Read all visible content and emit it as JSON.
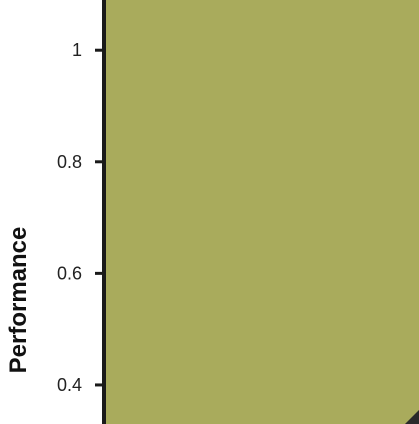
{
  "chart_data": {
    "type": "area",
    "ylabel": "Performance",
    "xlabel": "",
    "title": "",
    "ylim": [
      0.33,
      1.09
    ],
    "y_ticks": [
      1,
      0.8,
      0.6,
      0.4
    ],
    "y_tick_labels": [
      "1",
      "0.8",
      "0.6",
      "0.4"
    ],
    "grid": false,
    "legend": "none",
    "fill_color": "#a9ab5c",
    "series": [
      {
        "values": [
          1.09,
          1.09,
          0.33
        ]
      }
    ]
  }
}
